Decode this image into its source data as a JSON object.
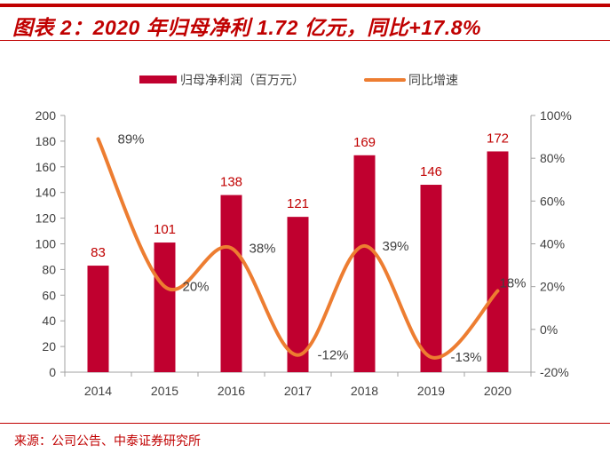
{
  "title": "图表 2：2020 年归母净利 1.72 亿元，同比+17.8%",
  "source": "来源：公司公告、中泰证券研究所",
  "colors": {
    "bar": "#C0002F",
    "line": "#ED7D31",
    "accent": "#C00000"
  },
  "chart_data": {
    "type": "bar+line",
    "categories": [
      "2014",
      "2015",
      "2016",
      "2017",
      "2018",
      "2019",
      "2020"
    ],
    "series": [
      {
        "name": "归母净利润（百万元）",
        "type": "bar",
        "axis": "left",
        "values": [
          83,
          101,
          138,
          121,
          169,
          146,
          172
        ],
        "labels": [
          "83",
          "101",
          "138",
          "121",
          "169",
          "146",
          "172"
        ]
      },
      {
        "name": "同比增速",
        "type": "line",
        "axis": "right",
        "values": [
          89,
          20,
          38,
          -12,
          39,
          -13,
          18
        ],
        "labels": [
          "89%",
          "20%",
          "38%",
          "-12%",
          "39%",
          "-13%",
          "18%"
        ]
      }
    ],
    "left_axis": {
      "ylim": [
        0,
        200
      ],
      "ticks": [
        "0",
        "20",
        "40",
        "60",
        "80",
        "100",
        "120",
        "140",
        "160",
        "180",
        "200"
      ]
    },
    "right_axis": {
      "ylim": [
        -20,
        100
      ],
      "ticks": [
        "-20%",
        "0%",
        "20%",
        "40%",
        "60%",
        "80%",
        "100%"
      ]
    },
    "legend_position": "top",
    "grid": false
  }
}
